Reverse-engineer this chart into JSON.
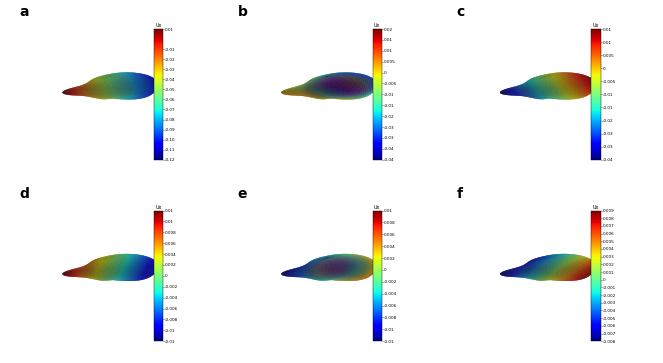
{
  "panels": [
    "a",
    "b",
    "c",
    "d",
    "e",
    "f"
  ],
  "colorbar_ranges": [
    [
      0.01,
      -0.12
    ],
    [
      0.02,
      -0.04
    ],
    [
      0.015,
      -0.035
    ],
    [
      0.012,
      -0.012
    ],
    [
      0.01,
      -0.012
    ],
    [
      0.009,
      -0.008
    ]
  ],
  "colorbar_ticks": [
    [
      0.01,
      -0.01,
      -0.02,
      -0.03,
      -0.04,
      -0.05,
      -0.06,
      -0.07,
      -0.08,
      -0.09,
      -0.1,
      -0.11,
      -0.12
    ],
    [
      0.02,
      0.015,
      0.01,
      0.005,
      0.0,
      -0.005,
      -0.01,
      -0.015,
      -0.02,
      -0.025,
      -0.03,
      -0.035,
      -0.04
    ],
    [
      0.015,
      0.01,
      0.005,
      0.0,
      -0.005,
      -0.01,
      -0.015,
      -0.02,
      -0.025,
      -0.03,
      -0.035
    ],
    [
      0.012,
      0.01,
      0.008,
      0.006,
      0.004,
      0.002,
      0.0,
      -0.002,
      -0.004,
      -0.006,
      -0.008,
      -0.01,
      -0.012
    ],
    [
      0.01,
      0.008,
      0.006,
      0.004,
      0.002,
      0.0,
      -0.002,
      -0.004,
      -0.006,
      -0.008,
      -0.01,
      -0.012
    ],
    [
      0.009,
      0.008,
      0.007,
      0.006,
      0.005,
      0.004,
      0.003,
      0.002,
      0.001,
      0.0,
      -0.001,
      -0.002,
      -0.003,
      -0.004,
      -0.005,
      -0.006,
      -0.007,
      -0.008
    ]
  ],
  "panel_label_fontsize": 10,
  "background_color": "#ffffff",
  "colormap": "jet"
}
